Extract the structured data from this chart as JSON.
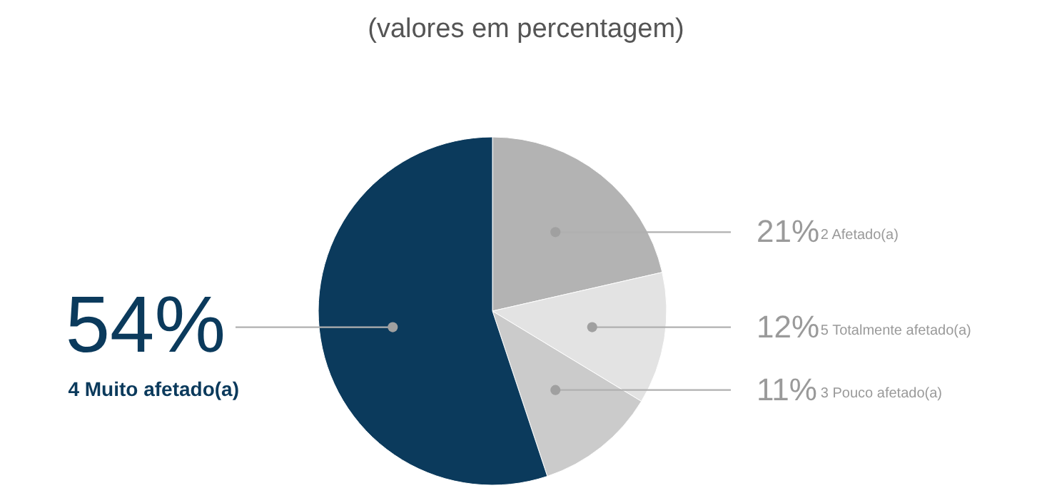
{
  "chart_data": {
    "type": "pie",
    "title": "(valores em percentagem)",
    "categories": [
      "2 Afetado(a)",
      "5 Totalmente afetado(a)",
      "3 Pouco afetado(a)",
      "4 Muito afetado(a)"
    ],
    "values": [
      21,
      12,
      11,
      54
    ],
    "value_labels": [
      "21%",
      "12%",
      "11%",
      "54%"
    ],
    "colors": [
      "#b3b3b3",
      "#e3e3e3",
      "#cbcbcb",
      "#0b3a5c"
    ]
  }
}
